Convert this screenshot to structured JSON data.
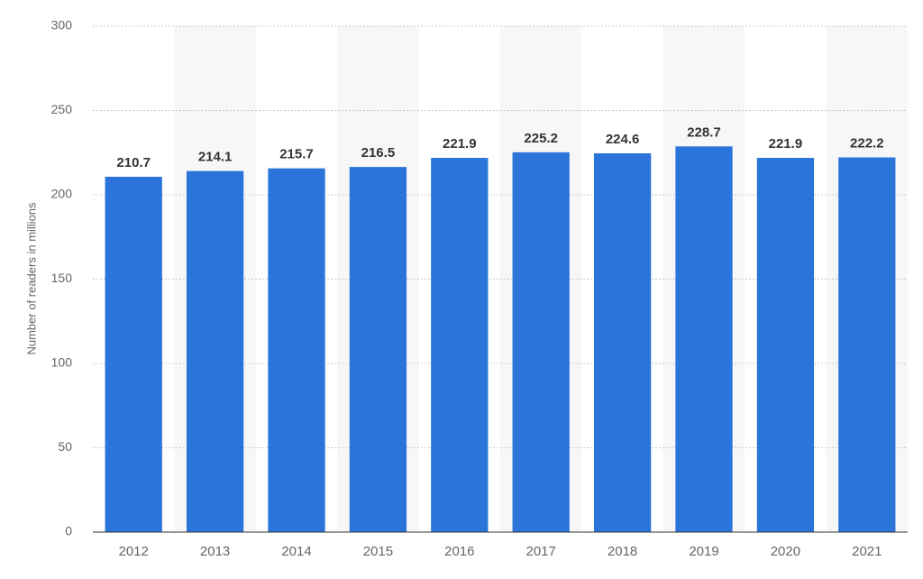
{
  "chart_data": {
    "type": "bar",
    "y_axis_label": "Number of readers in millions",
    "categories": [
      "2012",
      "2013",
      "2014",
      "2015",
      "2016",
      "2017",
      "2018",
      "2019",
      "2020",
      "2021"
    ],
    "values": [
      210.7,
      214.1,
      215.7,
      216.5,
      221.9,
      225.2,
      224.6,
      228.7,
      221.9,
      222.2
    ],
    "color": "#2a74da",
    "ylim": [
      0,
      300
    ],
    "yticks": [
      0,
      50,
      100,
      150,
      200,
      250,
      300
    ],
    "grid": true
  }
}
